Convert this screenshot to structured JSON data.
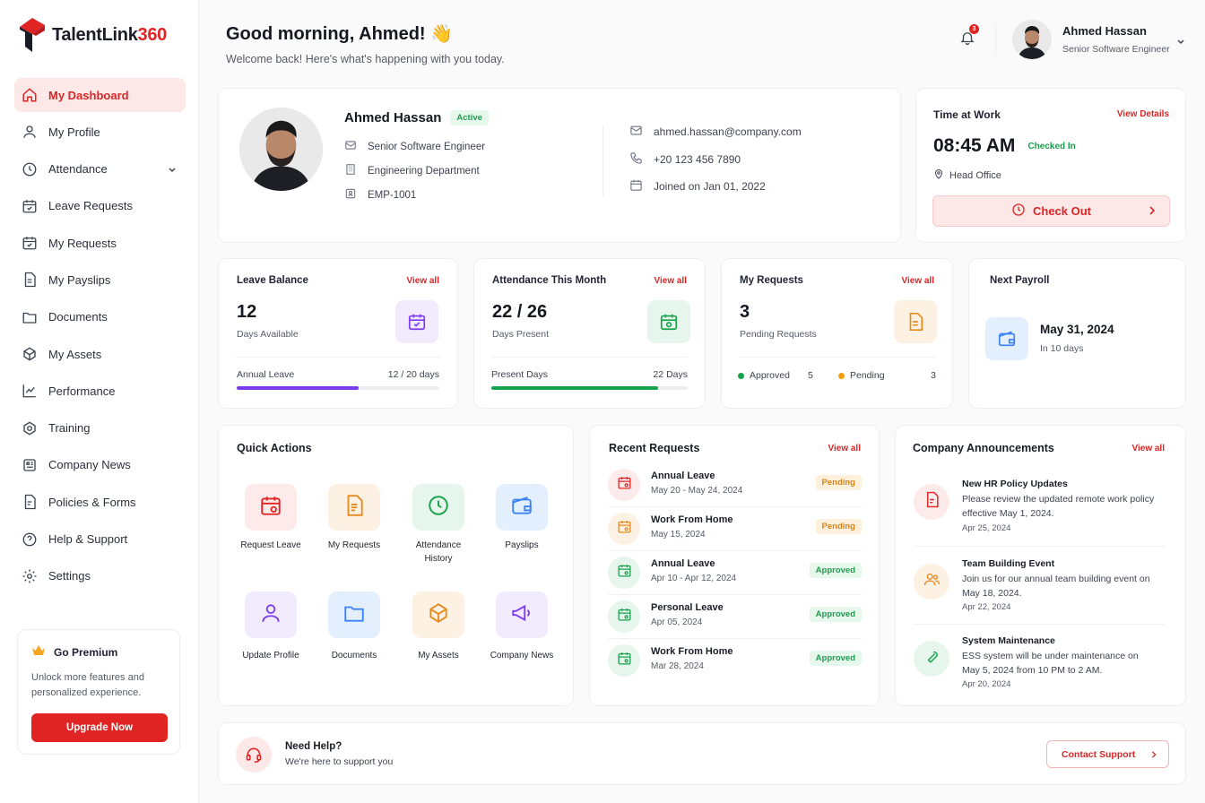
{
  "app": {
    "brand_main": "TalentLink",
    "brand_num": "360",
    "accent": "#e02424"
  },
  "sidebar": {
    "items": [
      {
        "label": "My Dashboard",
        "icon": "home-icon",
        "active": true
      },
      {
        "label": "My Profile",
        "icon": "user-icon"
      },
      {
        "label": "Attendance",
        "icon": "clock-icon",
        "expandable": true
      },
      {
        "label": "Leave Requests",
        "icon": "calendar-check-icon"
      },
      {
        "label": "My Requests",
        "icon": "calendar-check-icon"
      },
      {
        "label": "My Payslips",
        "icon": "file-text-icon"
      },
      {
        "label": "Documents",
        "icon": "folder-icon"
      },
      {
        "label": "My Assets",
        "icon": "box-icon"
      },
      {
        "label": "Performance",
        "icon": "chart-line-icon"
      },
      {
        "label": "Training",
        "icon": "graduation-icon"
      },
      {
        "label": "Company News",
        "icon": "news-icon"
      },
      {
        "label": "Policies & Forms",
        "icon": "file-icon"
      },
      {
        "label": "Help & Support",
        "icon": "help-circle-icon"
      },
      {
        "label": "Settings",
        "icon": "gear-icon"
      }
    ],
    "premium": {
      "title": "Go Premium",
      "desc_1": "Unlock more features and",
      "desc_2": "personalized experience.",
      "button": "Upgrade Now"
    }
  },
  "header": {
    "greeting": "Good morning, Ahmed! 👋",
    "subtitle": "Welcome back! Here's what's happening with you today.",
    "notification_count": "3",
    "user_name": "Ahmed Hassan",
    "user_role": "Senior Software Engineer"
  },
  "profile": {
    "name": "Ahmed Hassan",
    "status": "Active",
    "title": "Senior Software Engineer",
    "department": "Engineering Department",
    "employee_id": "EMP-1001",
    "email": "ahmed.hassan@company.com",
    "phone": "+20 123 456 7890",
    "joined": "Joined on Jan 01, 2022"
  },
  "time_at_work": {
    "title": "Time at Work",
    "link": "View Details",
    "time": "08:45 AM",
    "status": "Checked In",
    "location": "Head Office",
    "button": "Check Out"
  },
  "stats": {
    "leave": {
      "title": "Leave Balance",
      "link": "View all",
      "value": "12",
      "sub": "Days Available",
      "bar_label": "Annual Leave",
      "bar_value": "12 / 20 days",
      "fill_fraction": 0.6,
      "color": "#7c3aed"
    },
    "attendance": {
      "title": "Attendance This Month",
      "link": "View all",
      "value": "22 / 26",
      "sub": "Days Present",
      "bar_label": "Present Days",
      "bar_value": "22 Days",
      "fill_fraction": 0.85,
      "color": "#16a34a"
    },
    "requests": {
      "title": "My Requests",
      "link": "View all",
      "value": "3",
      "sub": "Pending Requests",
      "approved_label": "Approved",
      "approved_count": "5",
      "pending_label": "Pending",
      "pending_count": "3"
    },
    "payroll": {
      "title": "Next Payroll",
      "date": "May 31, 2024",
      "in": "In 10 days"
    }
  },
  "quick_actions": {
    "title": "Quick Actions",
    "items": [
      {
        "label": "Request Leave",
        "icon": "calendar-icon"
      },
      {
        "label": "My Requests",
        "icon": "document-icon"
      },
      {
        "label": "Attendance History",
        "icon": "clock-icon"
      },
      {
        "label": "Payslips",
        "icon": "wallet-icon"
      },
      {
        "label": "Update Profile",
        "icon": "user-icon"
      },
      {
        "label": "Documents",
        "icon": "folder-icon"
      },
      {
        "label": "My Assets",
        "icon": "box-icon"
      },
      {
        "label": "Company News",
        "icon": "megaphone-icon"
      }
    ]
  },
  "recent_requests": {
    "title": "Recent Requests",
    "link": "View all",
    "items": [
      {
        "title": "Annual Leave",
        "date": "May 20 - May 24, 2024",
        "status": "Pending"
      },
      {
        "title": "Work From Home",
        "date": "May 15, 2024",
        "status": "Pending"
      },
      {
        "title": "Annual Leave",
        "date": "Apr 10 - Apr 12, 2024",
        "status": "Approved"
      },
      {
        "title": "Personal Leave",
        "date": "Apr 05, 2024",
        "status": "Approved"
      },
      {
        "title": "Work From Home",
        "date": "Mar 28, 2024",
        "status": "Approved"
      }
    ]
  },
  "announcements": {
    "title": "Company Announcements",
    "link": "View all",
    "items": [
      {
        "title": "New HR Policy Updates",
        "desc": "Please review the updated remote work policy effective May 1, 2024.",
        "date": "Apr 25, 2024",
        "icon": "document-icon"
      },
      {
        "title": "Team Building Event",
        "desc": "Join us for our annual team building event on May 18, 2024.",
        "date": "Apr 22, 2024",
        "icon": "users-icon"
      },
      {
        "title": "System Maintenance",
        "desc": "ESS system will be under maintenance on May 5, 2024 from 10 PM to 2 AM.",
        "date": "Apr 20, 2024",
        "icon": "wrench-icon"
      }
    ]
  },
  "help": {
    "title": "Need Help?",
    "subtitle": "We're here to support you",
    "button": "Contact Support"
  }
}
